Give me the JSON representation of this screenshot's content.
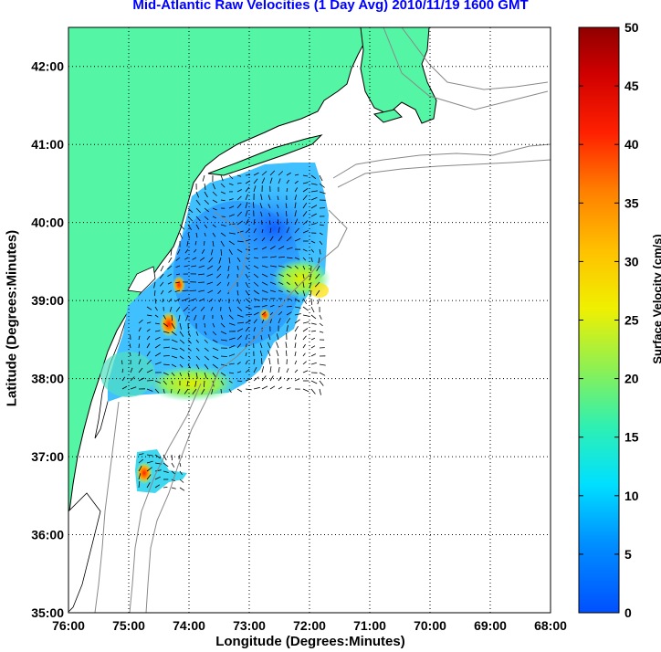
{
  "title": "Mid-Atlantic Raw Velocities (1 Day Avg) 2010/11/19 1600 GMT",
  "x_axis": {
    "label": "Longitude (Degrees:Minutes)",
    "ticks": [
      "76:00",
      "75:00",
      "74:00",
      "73:00",
      "72:00",
      "71:00",
      "70:00",
      "69:00",
      "68:00"
    ],
    "values": [
      -76,
      -75,
      -74,
      -73,
      -72,
      -71,
      -70,
      -69,
      -68
    ]
  },
  "y_axis": {
    "label": "Latitude (Degrees:Minutes)",
    "ticks": [
      "35:00",
      "36:00",
      "37:00",
      "38:00",
      "39:00",
      "40:00",
      "41:00",
      "42:00"
    ],
    "values": [
      35,
      36,
      37,
      38,
      39,
      40,
      41,
      42
    ]
  },
  "colorbar": {
    "label": "Surface Velocity (cm/s)",
    "ticks": [
      "0",
      "5",
      "10",
      "15",
      "20",
      "25",
      "30",
      "35",
      "40",
      "45",
      "50"
    ],
    "range": [
      0,
      50
    ],
    "colors": [
      "#0055ff",
      "#00b0ff",
      "#00f0f0",
      "#40f0a0",
      "#a0f030",
      "#ffff00",
      "#ffc000",
      "#ff8000",
      "#ff3000",
      "#e00000",
      "#900000"
    ]
  },
  "colors": {
    "land": "#55f5a6",
    "coast": "#000000",
    "bathy": "#888888",
    "grid": "#000000"
  }
}
